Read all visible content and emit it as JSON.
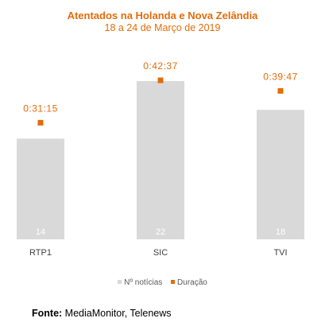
{
  "chart_data": {
    "type": "bar",
    "title": "Atentados na Holanda e Nova Zelândia",
    "subtitle": "18 a 24 de Março de 2019",
    "categories": [
      "RTP1",
      "SIC",
      "TVI"
    ],
    "series": [
      {
        "name": "Nº notícias",
        "type": "bar",
        "values": [
          14,
          22,
          18
        ],
        "labels": [
          "14",
          "22",
          "18"
        ]
      },
      {
        "name": "Duração",
        "type": "marker",
        "values": [
          1875,
          2557,
          2387
        ],
        "labels": [
          "0:31:15",
          "0:42:37",
          "0:39:47"
        ]
      }
    ],
    "legend_position": "bottom",
    "grid": false
  },
  "colors": {
    "title": "#E36C09",
    "bar": "#D9D9D9",
    "bar_label": "#FFFFFF",
    "marker": "#E36C09",
    "marker_label": "#E36C09",
    "axis_label": "#404040"
  },
  "source": {
    "label": "Fonte:",
    "text": "MediaMonitor, Telenews"
  }
}
